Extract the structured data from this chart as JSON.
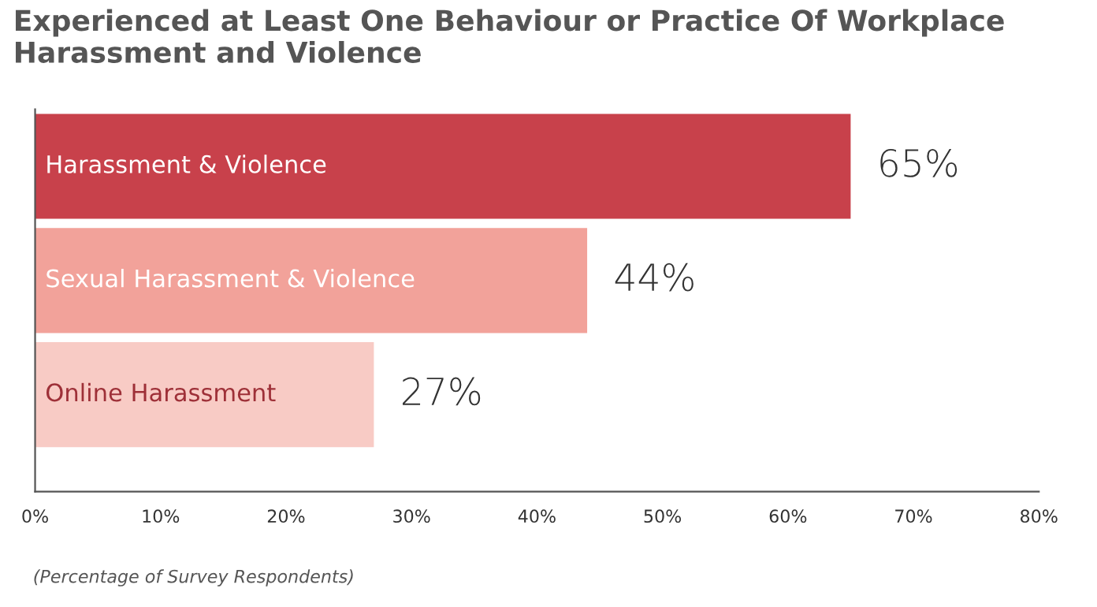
{
  "chart_data": {
    "type": "bar",
    "orientation": "horizontal",
    "title": "Experienced at Least One Behaviour or Practice Of Workplace Harassment and Violence",
    "categories": [
      "Harassment & Violence",
      "Sexual Harassment & Violence",
      "Online Harassment"
    ],
    "values": [
      65,
      44,
      27
    ],
    "colors": [
      "#c8414b",
      "#f2a29a",
      "#f8cbc5"
    ],
    "value_labels": [
      "65%",
      "44%",
      "27%"
    ],
    "xlim": [
      0,
      80
    ],
    "xticks": [
      {
        "value": 0,
        "label": "0%"
      },
      {
        "value": 10,
        "label": "10%"
      },
      {
        "value": 20,
        "label": "20%"
      },
      {
        "value": 30,
        "label": "30%"
      },
      {
        "value": 40,
        "label": "40%"
      },
      {
        "value": 50,
        "label": "50%"
      },
      {
        "value": 60,
        "label": "60%"
      },
      {
        "value": 70,
        "label": "70%"
      },
      {
        "value": 80,
        "label": "80%"
      }
    ],
    "grid": false,
    "annotations": [
      "(Percentage of Survey Respondents)"
    ]
  }
}
